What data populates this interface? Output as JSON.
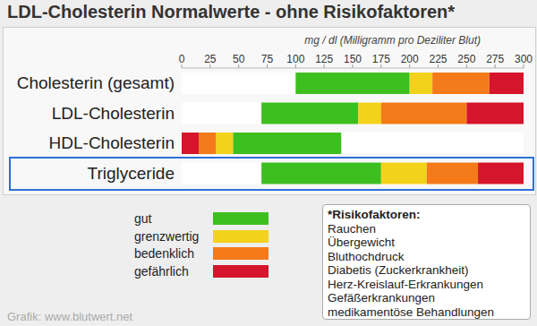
{
  "chart_data": {
    "type": "bar",
    "orientation": "horizontal",
    "title": "LDL-Cholesterin Normalwerte - ohne Risikofaktoren*",
    "subtitle": "mg / dl (Milligramm pro Deziliter Blut)",
    "categories": [
      "Cholesterin (gesamt)",
      "LDL-Cholesterin",
      "HDL-Cholesterin",
      "Triglyceride"
    ],
    "series": [
      {
        "name": "gut",
        "color": "#3dbf1f",
        "values": [
          [
            100,
            200
          ],
          [
            70,
            155
          ],
          [
            45,
            140
          ],
          [
            70,
            175
          ]
        ]
      },
      {
        "name": "grenzwertig",
        "color": "#f2d21a",
        "values": [
          [
            200,
            220
          ],
          [
            155,
            175
          ],
          [
            30,
            45
          ],
          [
            175,
            215
          ]
        ]
      },
      {
        "name": "bedenklich",
        "color": "#f47a1a",
        "values": [
          [
            220,
            270
          ],
          [
            175,
            250
          ],
          [
            15,
            30
          ],
          [
            215,
            260
          ]
        ]
      },
      {
        "name": "gefährlich",
        "color": "#d6142b",
        "values": [
          [
            270,
            300
          ],
          [
            250,
            300
          ],
          [
            0,
            15
          ],
          [
            260,
            300
          ]
        ]
      }
    ],
    "xlim": [
      0,
      300
    ],
    "xticks": [
      0,
      25,
      50,
      75,
      100,
      125,
      150,
      175,
      200,
      225,
      250,
      275,
      300
    ],
    "grid": false,
    "legend": "bottom left",
    "annotations": {
      "risk_title": "*Risikofaktoren:",
      "risk_factors": [
        "Rauchen",
        "Übergewicht",
        "Bluthochdruck",
        "Diabetis (Zuckerkrankheit)",
        "Herz-Kreislauf-Erkrankungen",
        "Gefäßerkrankungen",
        "medikamentöse Behandlungen"
      ],
      "source": "Grafik: www.blutwert.net"
    }
  }
}
